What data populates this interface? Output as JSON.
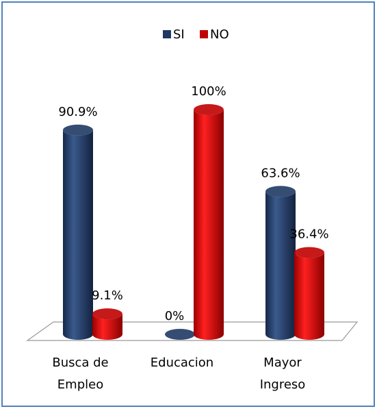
{
  "chart_data": {
    "type": "bar",
    "categories": [
      "Busca de Empleo",
      "Educacion",
      "Mayor Ingreso"
    ],
    "series": [
      {
        "name": "SI",
        "color": "#1f3864",
        "values": [
          90.9,
          0,
          63.6
        ],
        "value_labels": [
          "90.9%",
          "0%",
          "63.6%"
        ]
      },
      {
        "name": "NO",
        "color": "#c00000",
        "values": [
          9.1,
          100,
          36.4
        ],
        "value_labels": [
          "9.1%",
          "100%",
          "36.4%"
        ]
      }
    ],
    "legend": "top"
  }
}
